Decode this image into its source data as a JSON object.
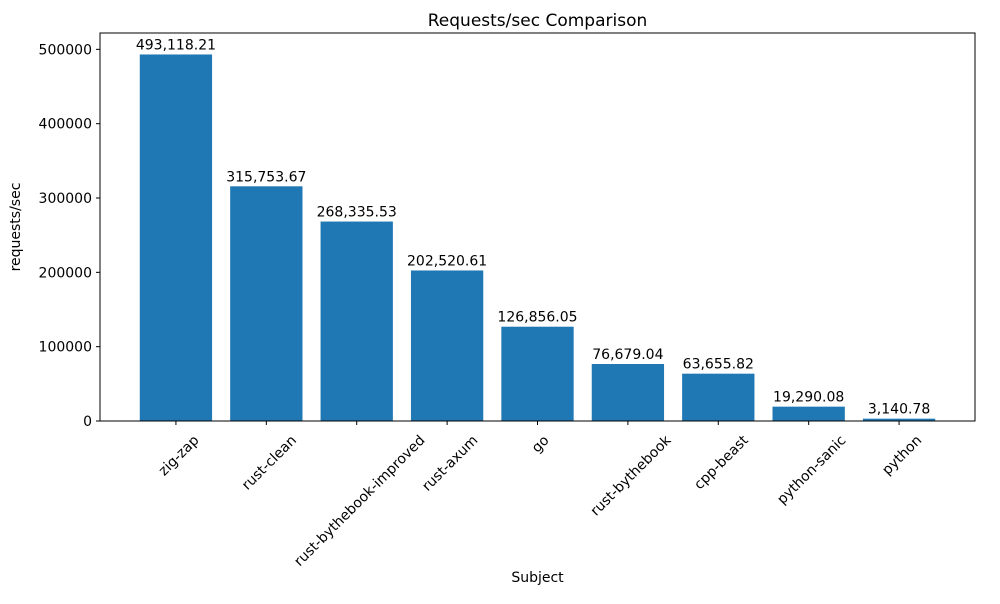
{
  "chart_data": {
    "type": "bar",
    "title": "Requests/sec Comparison",
    "xlabel": "Subject",
    "ylabel": "requests/sec",
    "categories": [
      "zig-zap",
      "rust-clean",
      "rust-bythebook-improved",
      "rust-axum",
      "go",
      "rust-bythebook",
      "cpp-beast",
      "python-sanic",
      "python"
    ],
    "values": [
      493118.21,
      315753.67,
      268335.53,
      202520.61,
      126856.05,
      76679.04,
      63655.82,
      19290.08,
      3140.78
    ],
    "value_labels": [
      "493,118.21",
      "315,753.67",
      "268,335.53",
      "202,520.61",
      "126,856.05",
      "76,679.04",
      "63,655.82",
      "19,290.08",
      "3,140.78"
    ],
    "yticks": [
      0,
      100000,
      200000,
      300000,
      400000,
      500000
    ],
    "ytick_labels": [
      "0",
      "100000",
      "200000",
      "300000",
      "400000",
      "500000"
    ],
    "ylim": [
      0,
      522000
    ],
    "xtick_rotation": 45,
    "grid": false,
    "legend": false,
    "bar_color": "#1f77b4",
    "axis_color": "#000000",
    "text_color": "#000000",
    "background": "#ffffff"
  }
}
